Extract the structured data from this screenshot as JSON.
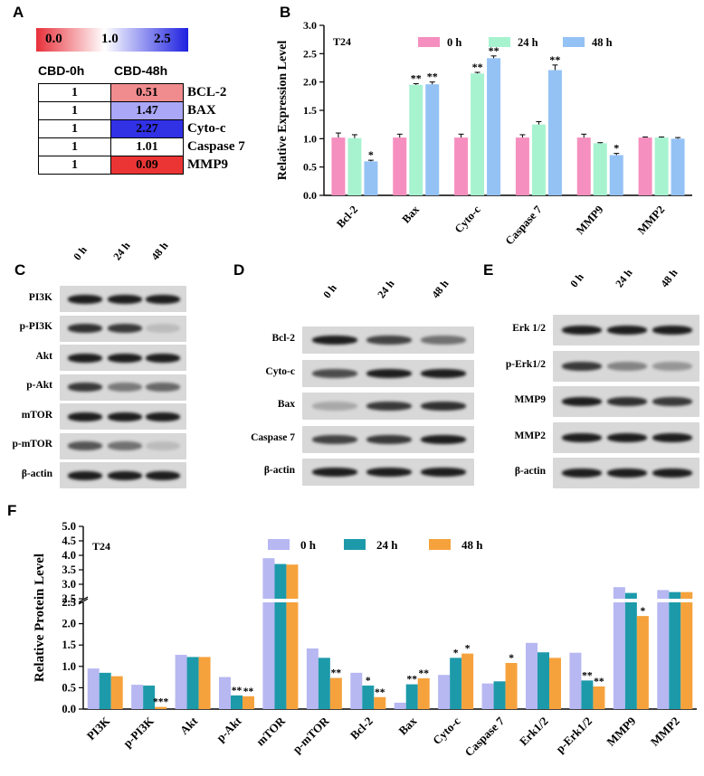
{
  "panels": {
    "a": "A",
    "b": "B",
    "c": "C",
    "d": "D",
    "e": "E",
    "f": "F"
  },
  "panel_a": {
    "scale_labels": [
      "0.0",
      "1.0",
      "2.5"
    ],
    "scale_colors": [
      "#e8303a",
      "#ffffff",
      "#1d20e0"
    ],
    "col_headers": [
      "CBD-0h",
      "CBD-48h"
    ],
    "rows": [
      {
        "gene": "BCL-2",
        "c0": "1",
        "c48": "0.51",
        "color": "#f18c8e"
      },
      {
        "gene": "BAX",
        "c0": "1",
        "c48": "1.47",
        "color": "#a9a7f6"
      },
      {
        "gene": "Cyto-c",
        "c0": "1",
        "c48": "2.27",
        "color": "#3131e6"
      },
      {
        "gene": "Caspase 7",
        "c0": "1",
        "c48": "1.01",
        "color": "#ffffff"
      },
      {
        "gene": "MMP9",
        "c0": "1",
        "c48": "0.09",
        "color": "#eb3535"
      }
    ]
  },
  "panel_c": {
    "lanes": [
      "0 h",
      "24 h",
      "48 h"
    ],
    "rows": [
      "PI3K",
      "p-PI3K",
      "Akt",
      "p-Akt",
      "mTOR",
      "p-mTOR",
      "β-actin"
    ],
    "intensity": [
      [
        1,
        1,
        1
      ],
      [
        0.9,
        0.85,
        0.15
      ],
      [
        1,
        1,
        1
      ],
      [
        0.85,
        0.5,
        0.6
      ],
      [
        1,
        1,
        1
      ],
      [
        0.7,
        0.55,
        0.15
      ],
      [
        1,
        1,
        1
      ]
    ]
  },
  "panel_d": {
    "lanes": [
      "0 h",
      "24 h",
      "48 h"
    ],
    "rows": [
      "Bcl-2",
      "Cyto-c",
      "Bax",
      "Caspase 7",
      "β-actin"
    ],
    "intensity": [
      [
        1,
        0.8,
        0.55
      ],
      [
        0.75,
        1,
        1
      ],
      [
        0.25,
        0.85,
        0.9
      ],
      [
        0.8,
        0.85,
        1
      ],
      [
        1,
        1,
        1
      ]
    ]
  },
  "panel_e": {
    "lanes": [
      "0 h",
      "24 h",
      "48 h"
    ],
    "rows": [
      "Erk 1/2",
      "p-Erk1/2",
      "MMP9",
      "MMP2",
      "β-actin"
    ],
    "intensity": [
      [
        1,
        1,
        1
      ],
      [
        0.85,
        0.45,
        0.35
      ],
      [
        1,
        0.9,
        0.85
      ],
      [
        1,
        1,
        1
      ],
      [
        1,
        1,
        1
      ]
    ]
  },
  "chart_data": [
    {
      "type": "bar",
      "panel": "B",
      "annotation": "T24",
      "ylabel": "Relative Expression Level",
      "ylim": [
        0,
        3.0
      ],
      "yticks": [
        "0.0",
        "0.5",
        "1.0",
        "1.5",
        "2.0",
        "2.5",
        "3.0"
      ],
      "categories": [
        "Bcl-2",
        "Bax",
        "Cyto-c",
        "Caspase 7",
        "MMP9",
        "MMP2"
      ],
      "colors": [
        "#f58fbf",
        "#a7f3d0",
        "#94c2f5"
      ],
      "series": [
        {
          "name": "0 h",
          "values": [
            1.02,
            1.02,
            1.02,
            1.02,
            1.02,
            1.02
          ],
          "err": [
            0.08,
            0.06,
            0.06,
            0.05,
            0.06,
            0.01
          ],
          "sig": [
            "",
            "",
            "",
            "",
            "",
            ""
          ]
        },
        {
          "name": "24 h",
          "values": [
            1.01,
            1.95,
            2.15,
            1.25,
            0.92,
            1.02
          ],
          "err": [
            0.06,
            0.02,
            0.02,
            0.05,
            0.01,
            0.01
          ],
          "sig": [
            "",
            "**",
            "**",
            "",
            "",
            ""
          ]
        },
        {
          "name": "48 h",
          "values": [
            0.6,
            1.96,
            2.42,
            2.21,
            0.71,
            1.0
          ],
          "err": [
            0.02,
            0.04,
            0.04,
            0.09,
            0.03,
            0.02
          ],
          "sig": [
            "*",
            "**",
            "**",
            "**",
            "*",
            ""
          ]
        }
      ]
    },
    {
      "type": "bar",
      "panel": "F",
      "annotation": "T24",
      "ylabel": "Relative Protein Level",
      "axis_break": [
        2.5,
        2.5
      ],
      "lower_yticks": [
        "0.0",
        "0.5",
        "1.0",
        "1.5",
        "2.0",
        "2.5"
      ],
      "upper_yticks": [
        "2.5",
        "3.0",
        "3.5",
        "4.0",
        "4.5",
        "5.0"
      ],
      "categories": [
        "PI3K",
        "p-PI3K",
        "Akt",
        "p-Akt",
        "mTOR",
        "p-mTOR",
        "Bcl-2",
        "Bax",
        "Cyto-c",
        "Caspase 7",
        "Erk1/2",
        "p-Erk1/2",
        "MMP9",
        "MMP2"
      ],
      "colors": [
        "#b7b7f2",
        "#1d9aaa",
        "#f6a23c"
      ],
      "series": [
        {
          "name": "0 h",
          "values": [
            0.95,
            0.57,
            1.27,
            0.75,
            3.9,
            1.42,
            0.85,
            0.15,
            0.8,
            0.6,
            1.55,
            1.32,
            2.9,
            2.8
          ],
          "sig": [
            "",
            "",
            "",
            "",
            "",
            "",
            "",
            "",
            "",
            "",
            "",
            "",
            "",
            ""
          ]
        },
        {
          "name": "24 h",
          "values": [
            0.85,
            0.55,
            1.22,
            0.32,
            3.7,
            1.2,
            0.55,
            0.58,
            1.2,
            0.65,
            1.33,
            0.67,
            2.7,
            2.73
          ],
          "sig": [
            "",
            "",
            "",
            "**",
            "",
            "",
            "*",
            "**",
            "*",
            "",
            "",
            "**",
            "",
            ""
          ]
        },
        {
          "name": "48 h",
          "values": [
            0.77,
            0.05,
            1.22,
            0.3,
            3.68,
            0.73,
            0.28,
            0.72,
            1.3,
            1.08,
            1.2,
            0.53,
            2.18,
            2.73
          ],
          "sig": [
            "",
            "***",
            "",
            "**",
            "",
            "**",
            "**",
            "**",
            "*",
            "*",
            "",
            "**",
            "*",
            ""
          ]
        }
      ]
    }
  ]
}
